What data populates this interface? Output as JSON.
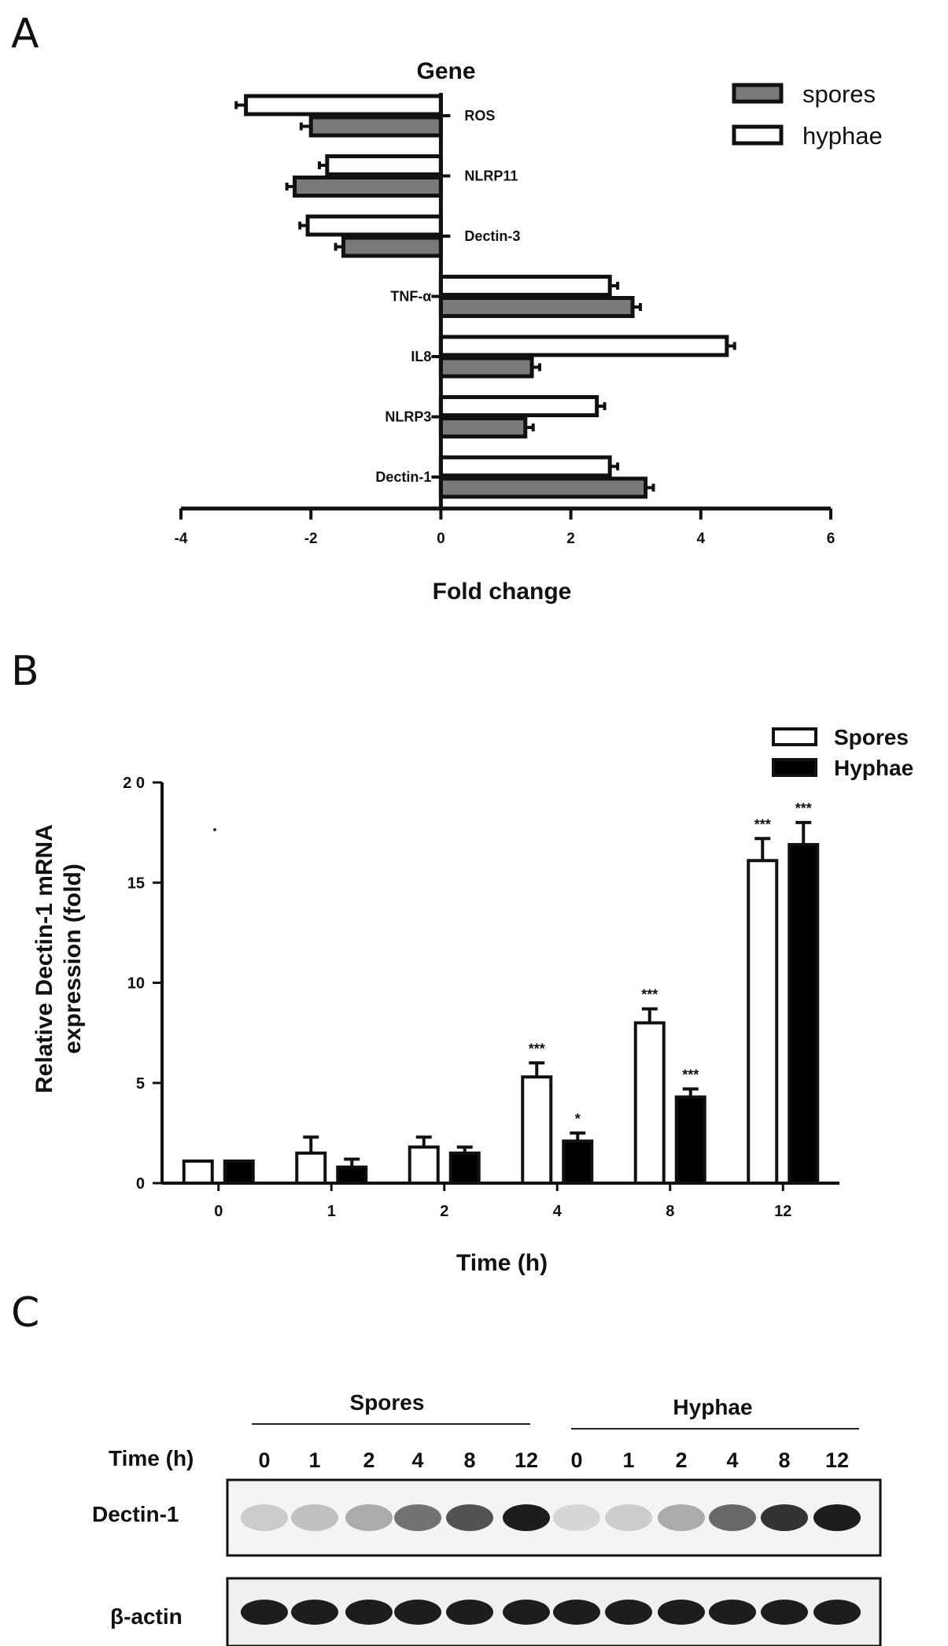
{
  "panel_labels": [
    "A",
    "B",
    "C"
  ],
  "chart_data": [
    {
      "type": "bar",
      "orientation": "horizontal",
      "panel": "A",
      "title": "Gene",
      "xlabel": "Fold change",
      "ylabel": "",
      "xlim": [
        -4,
        6
      ],
      "xticks": [
        -4,
        -2,
        0,
        2,
        4,
        6
      ],
      "categories": [
        "ROS",
        "NLRP11",
        "Dectin-3",
        "TNF-α",
        "IL8",
        "NLRP3",
        "Dectin-1"
      ],
      "series": [
        {
          "name": "spores",
          "color": "#7a7a7a",
          "values": [
            -2.0,
            -2.25,
            -1.5,
            2.95,
            1.4,
            1.3,
            3.15
          ],
          "errors": [
            0.15,
            0.12,
            0.12,
            0.12,
            0.12,
            0.12,
            0.12
          ]
        },
        {
          "name": "hyphae",
          "color": "#ffffff",
          "values": [
            -3.0,
            -1.75,
            -2.05,
            2.6,
            4.4,
            2.4,
            2.6
          ],
          "errors": [
            0.15,
            0.12,
            0.12,
            0.12,
            0.12,
            0.12,
            0.12
          ]
        }
      ],
      "legend_position": "top-right",
      "grid": false
    },
    {
      "type": "bar",
      "panel": "B",
      "title": "",
      "xlabel": "Time (h)",
      "ylabel_lines": [
        "Relative Dectin-1 mRNA",
        "expression (fold)"
      ],
      "ylim": [
        0,
        20
      ],
      "yticks": [
        0,
        5,
        10,
        15,
        20
      ],
      "ytick_labels": [
        "0",
        "5",
        "10",
        "15",
        "2 0"
      ],
      "categories": [
        "0",
        "1",
        "2",
        "4",
        "8",
        "12"
      ],
      "series": [
        {
          "name": "Spores",
          "color": "#ffffff",
          "values": [
            1.1,
            1.5,
            1.8,
            5.3,
            8.0,
            16.1
          ],
          "errors": [
            0.0,
            0.8,
            0.5,
            0.7,
            0.7,
            1.1
          ],
          "significance": [
            "",
            "",
            "",
            "***",
            "***",
            "***"
          ]
        },
        {
          "name": "Hyphae",
          "color": "#000000",
          "values": [
            1.1,
            0.8,
            1.5,
            2.1,
            4.3,
            16.9
          ],
          "errors": [
            0.0,
            0.4,
            0.3,
            0.4,
            0.4,
            1.1
          ],
          "significance": [
            "",
            "",
            "",
            "*",
            "***",
            "***"
          ]
        }
      ],
      "legend_position": "top-right",
      "grid": false
    }
  ],
  "panel_c": {
    "group_labels": [
      "Spores",
      "Hyphae"
    ],
    "time_label": "Time (h)",
    "lanes": [
      "0",
      "1",
      "2",
      "4",
      "8",
      "12",
      "0",
      "1",
      "2",
      "4",
      "8",
      "12"
    ],
    "rows": [
      {
        "label": "Dectin-1",
        "intensities": [
          0.15,
          0.2,
          0.3,
          0.55,
          0.7,
          0.95,
          0.1,
          0.15,
          0.3,
          0.6,
          0.85,
          0.95
        ]
      },
      {
        "label": "β-actin",
        "intensities": [
          0.95,
          0.95,
          0.95,
          0.95,
          0.95,
          0.95,
          0.95,
          0.95,
          0.95,
          0.95,
          0.95,
          0.95
        ]
      }
    ]
  }
}
